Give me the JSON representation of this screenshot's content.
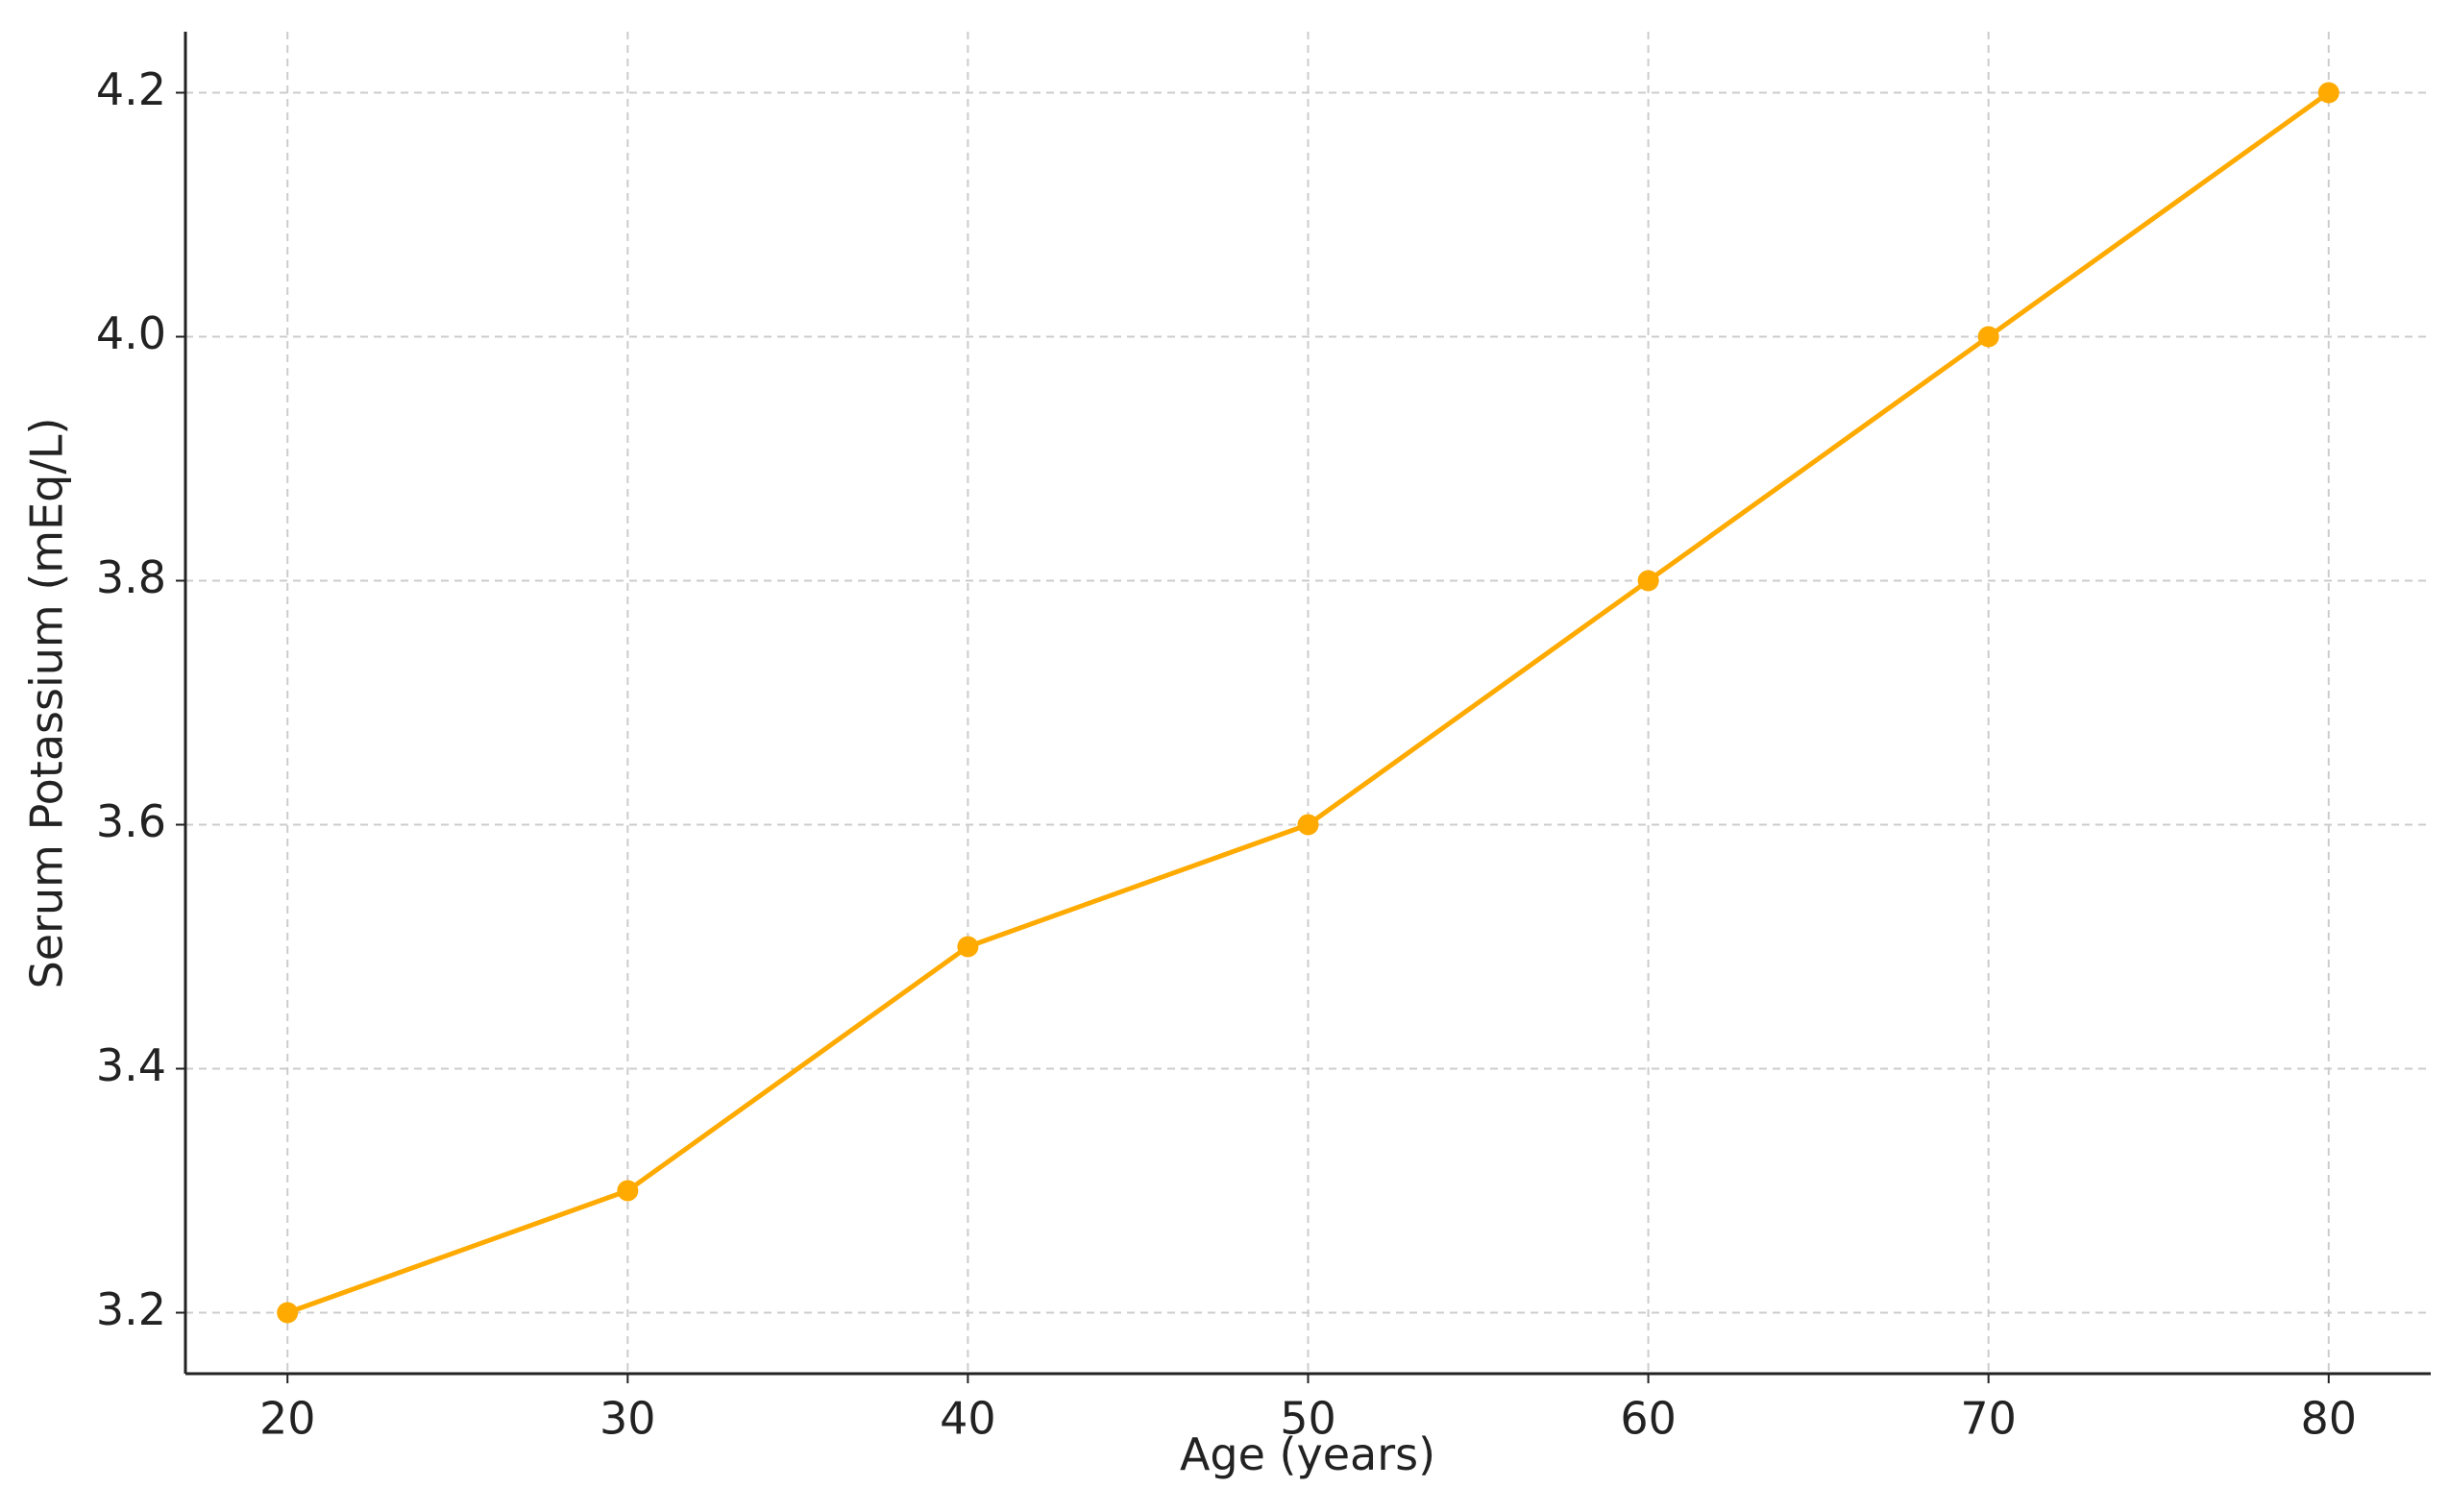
{
  "chart_data": {
    "type": "line",
    "xlabel": "Age (years)",
    "ylabel": "Serum Potassium (mEq/L)",
    "x": [
      20,
      30,
      40,
      50,
      60,
      70,
      80
    ],
    "values": [
      3.2,
      3.3,
      3.5,
      3.6,
      3.8,
      4.0,
      4.2
    ],
    "color": "#ffaa00",
    "xlim": [
      17,
      83
    ],
    "xticks": [
      20,
      30,
      40,
      50,
      60,
      70,
      80
    ],
    "ylim": [
      3.15,
      4.25
    ],
    "yticks": [
      3.2,
      3.4,
      3.6,
      3.8,
      {
        "value": 4,
        "label": "4.0"
      },
      4.2
    ],
    "grid": true
  }
}
